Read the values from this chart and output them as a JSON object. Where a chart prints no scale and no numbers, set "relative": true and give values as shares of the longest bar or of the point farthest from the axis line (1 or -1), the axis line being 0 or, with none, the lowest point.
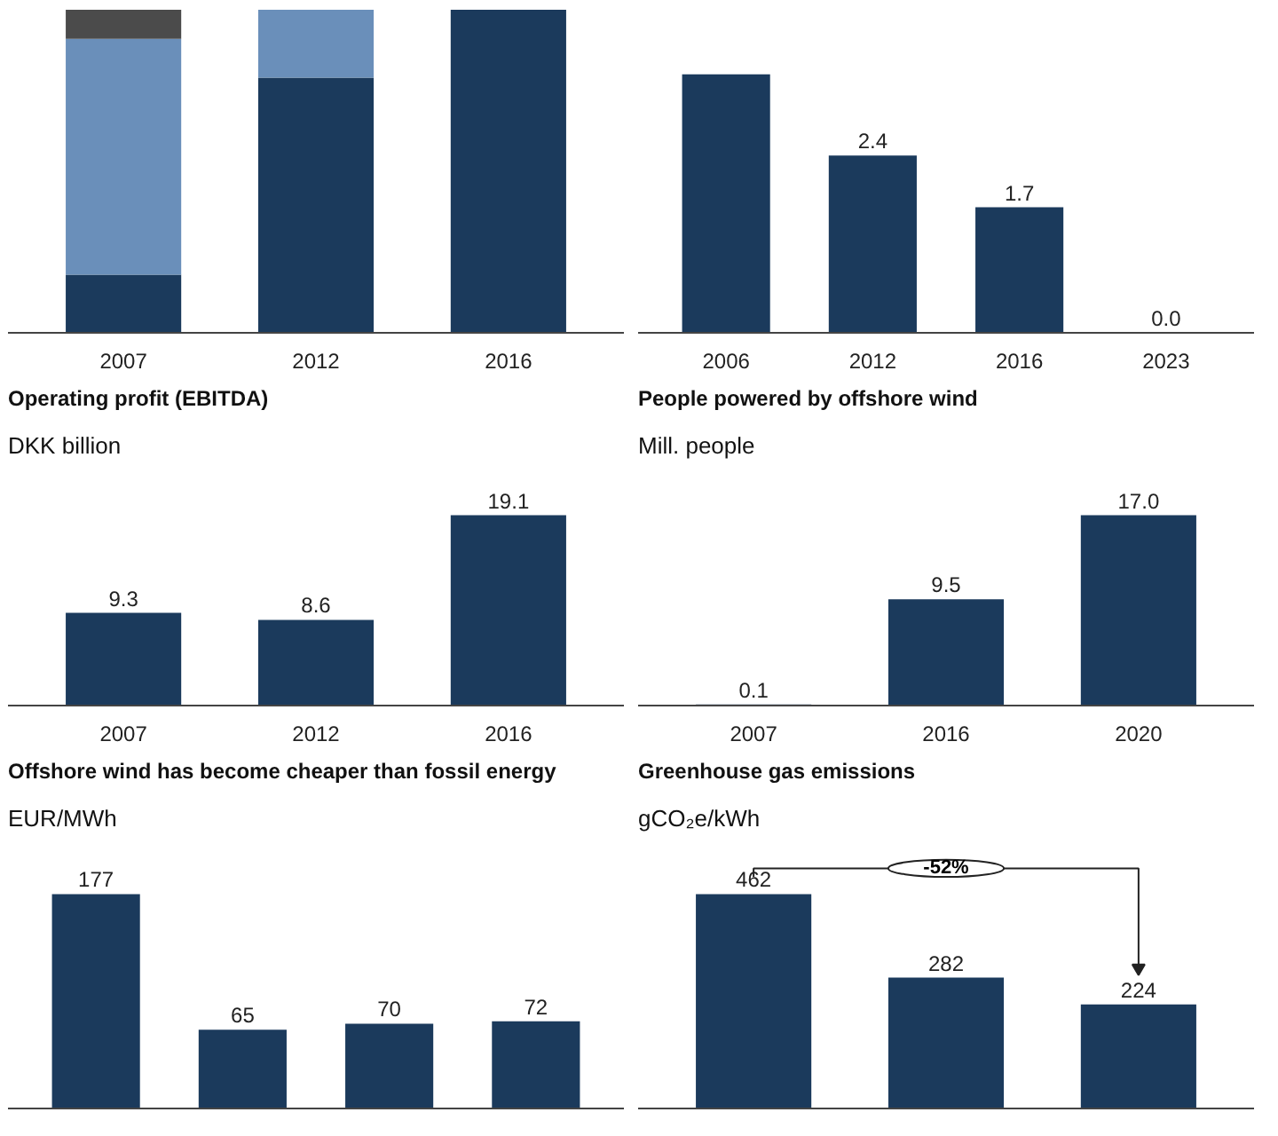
{
  "chart_data": [
    {
      "type": "bar",
      "stacked": true,
      "relative": true,
      "categories": [
        "2007",
        "2012",
        "2016"
      ],
      "series": [
        {
          "color": "#1b3a5c",
          "values": [
            0.18,
            0.79,
            1.0
          ]
        },
        {
          "color": "#6a8fba",
          "values": [
            0.73,
            0.21,
            0
          ]
        },
        {
          "color": "#4b4b4b",
          "values": [
            0.09,
            0,
            0
          ]
        }
      ]
    },
    {
      "type": "bar",
      "categories": [
        "2006",
        "2012",
        "2016",
        "2023"
      ],
      "values": [
        3.5,
        2.4,
        1.7,
        0.0
      ],
      "value_labels": [
        null,
        "2.4",
        "1.7",
        "0.0"
      ],
      "color": "#1b3a5c"
    },
    {
      "type": "bar",
      "title": "Operating profit (EBITDA)",
      "subtitle": "DKK billion",
      "categories": [
        "2007",
        "2012",
        "2016"
      ],
      "values": [
        9.3,
        8.6,
        19.1
      ],
      "color": "#1b3a5c",
      "data_labels": true
    },
    {
      "type": "bar",
      "title": "People powered by offshore wind",
      "subtitle": "Mill. people",
      "categories": [
        "2007",
        "2016",
        "2020"
      ],
      "values": [
        0.1,
        9.5,
        17.0
      ],
      "value_labels": [
        "0.1",
        "9.5",
        "17.0"
      ],
      "color": "#1b3a5c"
    },
    {
      "type": "bar",
      "title": "Offshore wind has become cheaper than fossil energy",
      "subtitle": "EUR/MWh",
      "categories": [
        null,
        null,
        null,
        null
      ],
      "values": [
        177,
        65,
        70,
        72
      ],
      "color": "#1b3a5c",
      "data_labels": true
    },
    {
      "type": "bar",
      "title": "Greenhouse gas emissions",
      "subtitle": "gCO₂e/kWh",
      "categories": [
        null,
        null,
        null
      ],
      "values": [
        462,
        282,
        224
      ],
      "color": "#1b3a5c",
      "data_labels": true,
      "annotations": [
        "-52%"
      ]
    }
  ]
}
